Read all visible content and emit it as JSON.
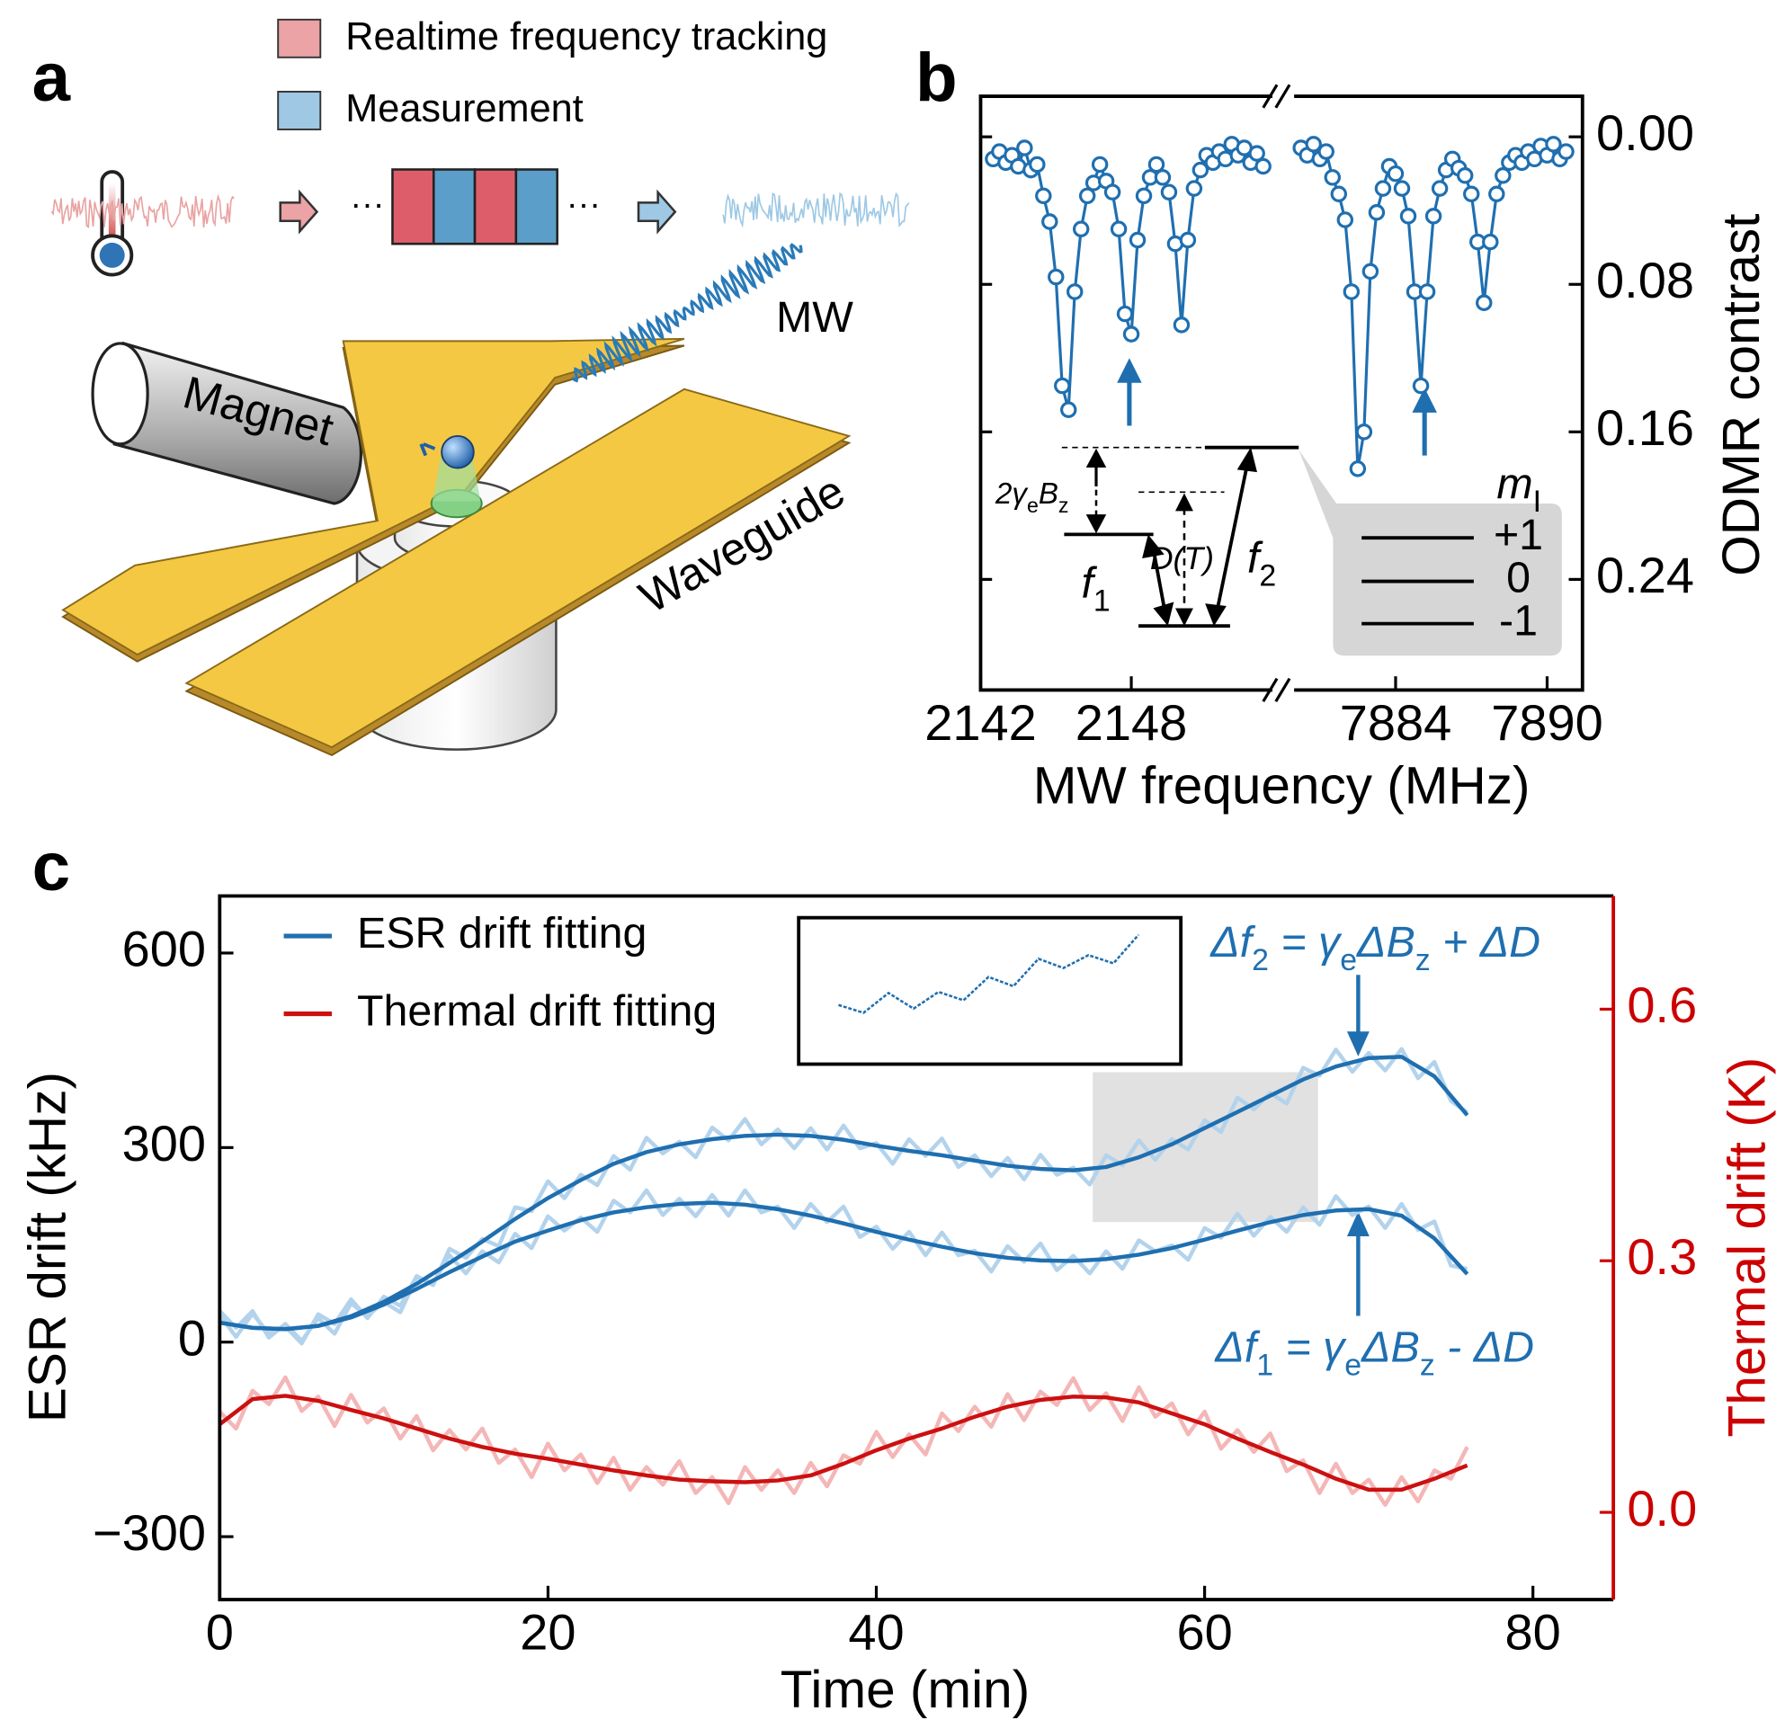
{
  "panel_labels": [
    "a",
    "b",
    "c"
  ],
  "diagram": {
    "legend": [
      "Realtime frequency tracking",
      "Measurement"
    ],
    "ellipsis": "···",
    "mw": "MW",
    "magnet": "Magnet",
    "waveguide": "Waveguide"
  },
  "chart_data": [
    {
      "type": "line",
      "markers": true,
      "xlabel": "MW frequency (MHz)",
      "ylabel": "ODMR contrast",
      "xlim": [
        [
          2142,
          2153.8
        ],
        [
          7879.8,
          7891.4
        ]
      ],
      "xticks": [
        2142,
        2148,
        7884,
        7890
      ],
      "ylim": [
        0.3,
        -0.022
      ],
      "yticks": [
        {
          "value": 0,
          "label": "0.00"
        },
        {
          "value": 0.08,
          "label": "0.08"
        },
        {
          "value": 0.16,
          "label": "0.16"
        },
        {
          "value": 0.24,
          "label": "0.24"
        }
      ],
      "series": [
        {
          "color": "#1f6fb0",
          "x": [
            2142.5,
            2142.75,
            2143,
            2143.25,
            2143.5,
            2143.75,
            2144,
            2144.25,
            2144.5,
            2144.75,
            2145,
            2145.25,
            2145.5,
            2145.75,
            2146,
            2146.25,
            2146.5,
            2146.75,
            2147,
            2147.25,
            2147.5,
            2147.75,
            2148,
            2148.25,
            2148.5,
            2148.75,
            2149,
            2149.25,
            2149.5,
            2149.75,
            2150,
            2150.25,
            2150.5,
            2150.75,
            2151,
            2151.25,
            2151.5,
            2151.75,
            2152,
            2152.25,
            2152.5,
            2152.75,
            2153,
            2153.25
          ],
          "values": [
            0.012,
            0.008,
            0.014,
            0.01,
            0.016,
            0.006,
            0.018,
            0.015,
            0.032,
            0.046,
            0.076,
            0.135,
            0.148,
            0.084,
            0.05,
            0.032,
            0.025,
            0.015,
            0.024,
            0.03,
            0.05,
            0.096,
            0.107,
            0.056,
            0.032,
            0.022,
            0.015,
            0.022,
            0.03,
            0.058,
            0.102,
            0.056,
            0.028,
            0.018,
            0.01,
            0.014,
            0.008,
            0.012,
            0.004,
            0.01,
            0.006,
            0.014,
            0.009,
            0.016
          ]
        },
        {
          "color": "#1f6fb0",
          "x": [
            7880.25,
            7880.5,
            7880.75,
            7881,
            7881.25,
            7881.5,
            7881.75,
            7882,
            7882.25,
            7882.5,
            7882.75,
            7883,
            7883.25,
            7883.5,
            7883.75,
            7884,
            7884.25,
            7884.5,
            7884.75,
            7885,
            7885.25,
            7885.5,
            7885.75,
            7886,
            7886.25,
            7886.5,
            7886.75,
            7887,
            7887.25,
            7887.5,
            7887.75,
            7888,
            7888.25,
            7888.5,
            7888.75,
            7889,
            7889.25,
            7889.5,
            7889.75,
            7890,
            7890.25,
            7890.5,
            7890.75
          ],
          "values": [
            0.006,
            0.01,
            0.004,
            0.012,
            0.008,
            0.022,
            0.031,
            0.045,
            0.084,
            0.18,
            0.16,
            0.073,
            0.041,
            0.028,
            0.016,
            0.02,
            0.028,
            0.043,
            0.084,
            0.135,
            0.084,
            0.043,
            0.028,
            0.018,
            0.012,
            0.017,
            0.021,
            0.031,
            0.057,
            0.09,
            0.057,
            0.031,
            0.021,
            0.014,
            0.01,
            0.014,
            0.008,
            0.012,
            0.005,
            0.01,
            0.004,
            0.012,
            0.008
          ]
        }
      ],
      "level_diagram": {
        "zeeman": [
          "2γ",
          "e",
          "B",
          "z"
        ],
        "zfs": "D(T)",
        "f1": [
          "f",
          "1"
        ],
        "f2": [
          "f",
          "2"
        ],
        "mi": [
          "m",
          "I"
        ],
        "levels": [
          "+1",
          "0",
          "-1"
        ]
      }
    },
    {
      "type": "line",
      "xlabel": "Time (min)",
      "ylabel": "ESR drift (kHz)",
      "y2label": "Thermal drift (K)",
      "legend": "upper left",
      "xlim": [
        0,
        84.9
      ],
      "xticks": [
        0,
        20,
        40,
        60,
        80
      ],
      "ylim": [
        -397,
        688
      ],
      "yticks": [
        {
          "value": -300,
          "label": "−300"
        },
        0,
        300,
        600
      ],
      "y2lim": [
        -0.104,
        0.735
      ],
      "y2ticks": [
        {
          "value": 0,
          "label": "0.0"
        },
        0.3,
        0.6
      ],
      "y2color": "#cc0000",
      "annotations": [
        [
          "Δf",
          "2",
          " = γ",
          "e",
          "ΔB",
          "z",
          " + ΔD"
        ],
        [
          "Δf",
          "1",
          " = γ",
          "e",
          "ΔB",
          "z",
          " - ΔD"
        ]
      ],
      "series": [
        {
          "color": "#b3d3ec",
          "x": [
            0,
            1,
            2,
            3,
            4,
            5,
            6,
            7,
            8,
            9,
            10,
            11,
            12,
            13,
            14,
            15,
            16,
            17,
            18,
            19,
            20,
            21,
            22,
            23,
            24,
            25,
            26,
            27,
            28,
            29,
            30,
            31,
            32,
            33,
            34,
            35,
            36,
            37,
            38,
            39,
            40,
            41,
            42,
            43,
            44,
            45,
            46,
            47,
            48,
            49,
            50,
            51,
            52,
            53,
            54,
            55,
            56,
            57,
            58,
            59,
            60,
            61,
            62,
            63,
            64,
            65,
            66,
            67,
            68,
            69,
            70,
            71,
            72,
            73,
            74,
            75,
            76
          ],
          "values": [
            42,
            8,
            44,
            13,
            24,
            -2,
            43,
            28,
            66,
            37,
            70,
            56,
            102,
            88,
            144,
            130,
            159,
            148,
            208,
            202,
            248,
            222,
            258,
            242,
            287,
            266,
            315,
            291,
            309,
            285,
            331,
            311,
            344,
            305,
            328,
            299,
            330,
            297,
            334,
            299,
            307,
            275,
            313,
            287,
            314,
            270,
            288,
            256,
            284,
            251,
            289,
            258,
            269,
            243,
            288,
            273,
            311,
            281,
            313,
            297,
            342,
            324,
            377,
            359,
            384,
            368,
            423,
            411,
            451,
            417,
            446,
            419,
            452,
            407,
            432,
            372,
            354
          ]
        },
        {
          "color": "#b3d3ec",
          "x": [
            0,
            1,
            2,
            3,
            4,
            5,
            6,
            7,
            8,
            9,
            10,
            11,
            12,
            13,
            14,
            15,
            16,
            17,
            18,
            19,
            20,
            21,
            22,
            23,
            24,
            25,
            26,
            27,
            28,
            29,
            30,
            31,
            32,
            33,
            34,
            35,
            36,
            37,
            38,
            39,
            40,
            41,
            42,
            43,
            44,
            45,
            46,
            47,
            48,
            49,
            50,
            51,
            52,
            53,
            54,
            55,
            56,
            57,
            58,
            59,
            60,
            61,
            62,
            63,
            64,
            65,
            66,
            67,
            68,
            69,
            70,
            71,
            72,
            73,
            74,
            75,
            76
          ],
          "values": [
            48,
            22,
            48,
            7,
            28,
            2,
            37,
            13,
            60,
            40,
            62,
            46,
            100,
            91,
            134,
            106,
            140,
            123,
            167,
            145,
            194,
            172,
            192,
            170,
            218,
            200,
            234,
            196,
            221,
            194,
            227,
            195,
            234,
            200,
            209,
            176,
            213,
            185,
            209,
            162,
            178,
            144,
            170,
            134,
            169,
            134,
            141,
            109,
            148,
            124,
            152,
            111,
            133,
            106,
            140,
            113,
            157,
            140,
            149,
            127,
            176,
            161,
            198,
            164,
            193,
            170,
            208,
            181,
            225,
            196,
            209,
            176,
            213,
            173,
            186,
            118,
            113
          ]
        },
        {
          "name": "ESR drift fitting",
          "color": "#1f6fb0",
          "x": [
            0,
            2,
            4,
            6,
            8,
            10,
            12,
            14,
            16,
            18,
            20,
            22,
            24,
            26,
            28,
            30,
            32,
            34,
            36,
            38,
            40,
            42,
            44,
            46,
            48,
            50,
            52,
            54,
            56,
            58,
            60,
            62,
            64,
            66,
            68,
            70,
            72,
            74,
            76
          ],
          "values": [
            30,
            22,
            20,
            25,
            40,
            62,
            90,
            122,
            155,
            190,
            222,
            250,
            275,
            293,
            305,
            313,
            318,
            320,
            318,
            312,
            303,
            295,
            288,
            280,
            272,
            267,
            265,
            270,
            285,
            305,
            330,
            355,
            380,
            405,
            425,
            438,
            440,
            410,
            350
          ]
        },
        {
          "color": "#1f6fb0",
          "x": [
            0,
            2,
            4,
            6,
            8,
            10,
            12,
            14,
            16,
            18,
            20,
            22,
            24,
            26,
            28,
            30,
            32,
            34,
            36,
            38,
            40,
            42,
            44,
            46,
            48,
            50,
            52,
            54,
            56,
            58,
            60,
            62,
            64,
            66,
            68,
            70,
            72,
            74,
            76
          ],
          "values": [
            30,
            22,
            20,
            25,
            38,
            58,
            82,
            108,
            132,
            155,
            172,
            188,
            200,
            208,
            213,
            215,
            212,
            205,
            195,
            183,
            170,
            158,
            147,
            137,
            130,
            126,
            125,
            128,
            135,
            145,
            158,
            172,
            185,
            196,
            203,
            205,
            195,
            160,
            105
          ]
        },
        {
          "color": "#f4b6b6",
          "axis": "y2",
          "x": [
            0,
            1,
            2,
            3,
            4,
            5,
            6,
            7,
            8,
            9,
            10,
            11,
            12,
            13,
            14,
            15,
            16,
            17,
            18,
            19,
            20,
            21,
            22,
            23,
            24,
            25,
            26,
            27,
            28,
            29,
            30,
            31,
            32,
            33,
            34,
            35,
            36,
            37,
            38,
            39,
            40,
            41,
            42,
            43,
            44,
            45,
            46,
            47,
            48,
            49,
            50,
            51,
            52,
            53,
            54,
            55,
            56,
            57,
            58,
            59,
            60,
            61,
            62,
            63,
            64,
            65,
            66,
            67,
            68,
            69,
            70,
            71,
            72,
            73,
            74,
            75,
            76
          ],
          "values": [
            0.12,
            0.1,
            0.145,
            0.129,
            0.161,
            0.121,
            0.138,
            0.103,
            0.14,
            0.107,
            0.124,
            0.088,
            0.115,
            0.074,
            0.098,
            0.075,
            0.1,
            0.059,
            0.075,
            0.042,
            0.082,
            0.05,
            0.069,
            0.035,
            0.065,
            0.027,
            0.054,
            0.033,
            0.061,
            0.023,
            0.042,
            0.011,
            0.054,
            0.027,
            0.05,
            0.023,
            0.059,
            0.031,
            0.068,
            0.058,
            0.096,
            0.066,
            0.093,
            0.069,
            0.118,
            0.097,
            0.126,
            0.102,
            0.141,
            0.11,
            0.144,
            0.128,
            0.16,
            0.122,
            0.142,
            0.109,
            0.149,
            0.114,
            0.13,
            0.093,
            0.12,
            0.076,
            0.098,
            0.072,
            0.094,
            0.049,
            0.062,
            0.023,
            0.058,
            0.023,
            0.039,
            0.009,
            0.042,
            0.013,
            0.05,
            0.04,
            0.078
          ]
        },
        {
          "name": "Thermal drift fitting",
          "color": "#cc1010",
          "axis": "y2",
          "x": [
            0,
            2,
            4,
            6,
            8,
            10,
            12,
            14,
            16,
            18,
            20,
            22,
            24,
            26,
            28,
            30,
            32,
            34,
            36,
            38,
            40,
            42,
            44,
            46,
            48,
            50,
            52,
            54,
            56,
            58,
            60,
            62,
            64,
            66,
            68,
            70,
            72,
            74,
            76
          ],
          "values": [
            0.105,
            0.135,
            0.139,
            0.133,
            0.122,
            0.112,
            0.1,
            0.088,
            0.078,
            0.07,
            0.064,
            0.057,
            0.05,
            0.044,
            0.039,
            0.037,
            0.036,
            0.038,
            0.044,
            0.058,
            0.074,
            0.088,
            0.1,
            0.114,
            0.126,
            0.134,
            0.138,
            0.137,
            0.131,
            0.118,
            0.105,
            0.088,
            0.072,
            0.057,
            0.04,
            0.027,
            0.027,
            0.04,
            0.056
          ]
        }
      ]
    }
  ]
}
